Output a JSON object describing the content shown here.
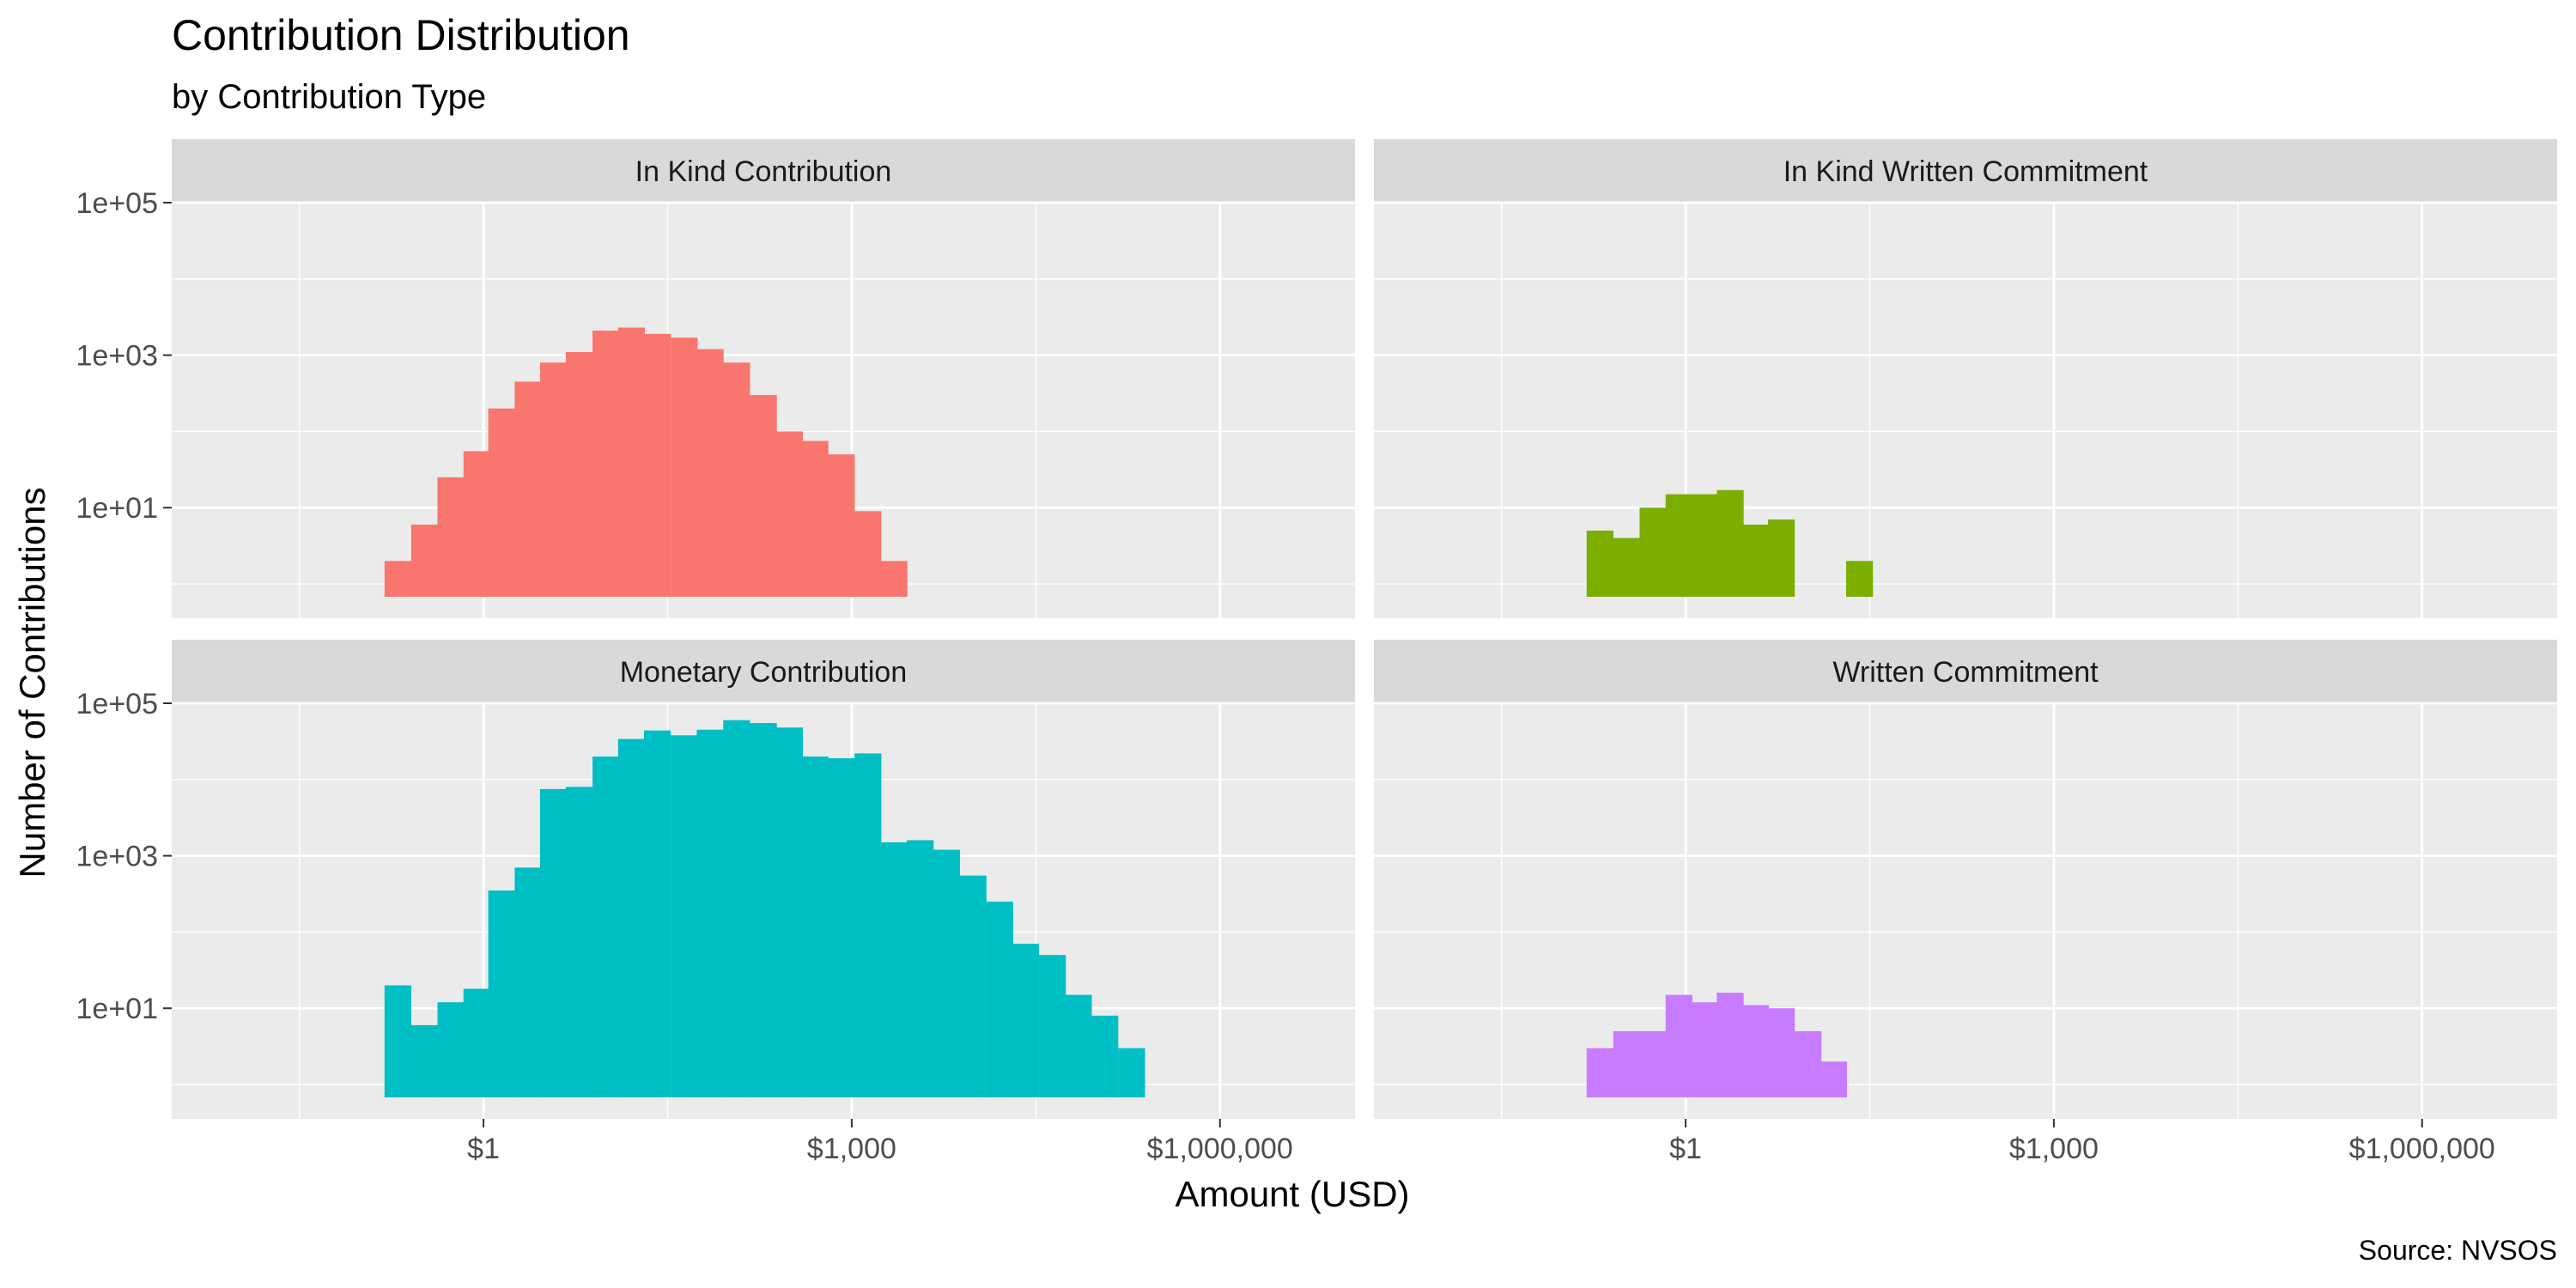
{
  "chart_data": {
    "type": "bar",
    "title": "Contribution Distribution",
    "subtitle": "by Contribution Type",
    "xlabel": "Amount (USD)",
    "ylabel": "Number of Contributions",
    "caption": "Source: NVSOS",
    "x_scale": "log10",
    "y_scale": "log10",
    "x_ticks": [
      {
        "value": 1,
        "label": "$1"
      },
      {
        "value": 1000,
        "label": "$1,000"
      },
      {
        "value": 1000000,
        "label": "$1,000,000"
      }
    ],
    "y_ticks": [
      {
        "value": 10,
        "label": "1e+01"
      },
      {
        "value": 1000,
        "label": "1e+03"
      },
      {
        "value": 100000,
        "label": "1e+05"
      }
    ],
    "bin_log10_width": 0.215,
    "grid": true,
    "legend": "none",
    "facets": [
      {
        "name": "In Kind Contribution",
        "color": "#F8766D",
        "bins": [
          {
            "x": 0.2,
            "count": 2
          },
          {
            "x": 0.33,
            "count": 6
          },
          {
            "x": 0.54,
            "count": 25
          },
          {
            "x": 0.88,
            "count": 55
          },
          {
            "x": 1.4,
            "count": 200
          },
          {
            "x": 2.3,
            "count": 450
          },
          {
            "x": 3.7,
            "count": 800
          },
          {
            "x": 6.0,
            "count": 1100
          },
          {
            "x": 9.9,
            "count": 2100
          },
          {
            "x": 16,
            "count": 2300
          },
          {
            "x": 26,
            "count": 1900
          },
          {
            "x": 43,
            "count": 1700
          },
          {
            "x": 70,
            "count": 1200
          },
          {
            "x": 115,
            "count": 800
          },
          {
            "x": 190,
            "count": 300
          },
          {
            "x": 310,
            "count": 100
          },
          {
            "x": 500,
            "count": 75
          },
          {
            "x": 820,
            "count": 50
          },
          {
            "x": 1350,
            "count": 9
          },
          {
            "x": 2200,
            "count": 2
          }
        ]
      },
      {
        "name": "In Kind Written Commitment",
        "color": "#7CAE00",
        "bins": [
          {
            "x": 0.2,
            "count": 5
          },
          {
            "x": 0.33,
            "count": 4
          },
          {
            "x": 0.54,
            "count": 10
          },
          {
            "x": 0.88,
            "count": 15
          },
          {
            "x": 1.4,
            "count": 15
          },
          {
            "x": 2.3,
            "count": 17
          },
          {
            "x": 3.7,
            "count": 6
          },
          {
            "x": 6.0,
            "count": 7
          },
          {
            "x": 26,
            "count": 2
          }
        ]
      },
      {
        "name": "Monetary Contribution",
        "color": "#00BFC4",
        "bins": [
          {
            "x": 0.2,
            "count": 20
          },
          {
            "x": 0.33,
            "count": 6
          },
          {
            "x": 0.54,
            "count": 12
          },
          {
            "x": 0.88,
            "count": 18
          },
          {
            "x": 1.4,
            "count": 350
          },
          {
            "x": 2.3,
            "count": 700
          },
          {
            "x": 3.7,
            "count": 7500
          },
          {
            "x": 6.0,
            "count": 8000
          },
          {
            "x": 9.9,
            "count": 20000
          },
          {
            "x": 16,
            "count": 34000
          },
          {
            "x": 26,
            "count": 44000
          },
          {
            "x": 43,
            "count": 38000
          },
          {
            "x": 70,
            "count": 45000
          },
          {
            "x": 115,
            "count": 60000
          },
          {
            "x": 190,
            "count": 55000
          },
          {
            "x": 310,
            "count": 48000
          },
          {
            "x": 500,
            "count": 20000
          },
          {
            "x": 820,
            "count": 19000
          },
          {
            "x": 1350,
            "count": 22000
          },
          {
            "x": 2200,
            "count": 1500
          },
          {
            "x": 3600,
            "count": 1600
          },
          {
            "x": 5900,
            "count": 1200
          },
          {
            "x": 9700,
            "count": 550
          },
          {
            "x": 16000,
            "count": 250
          },
          {
            "x": 26000,
            "count": 70
          },
          {
            "x": 43000,
            "count": 50
          },
          {
            "x": 70000,
            "count": 15
          },
          {
            "x": 115000,
            "count": 8
          },
          {
            "x": 190000,
            "count": 3
          }
        ]
      },
      {
        "name": "Written Commitment",
        "color": "#C77CFF",
        "bins": [
          {
            "x": 0.2,
            "count": 3
          },
          {
            "x": 0.33,
            "count": 5
          },
          {
            "x": 0.54,
            "count": 5
          },
          {
            "x": 0.88,
            "count": 15
          },
          {
            "x": 1.4,
            "count": 12
          },
          {
            "x": 2.3,
            "count": 16
          },
          {
            "x": 3.7,
            "count": 11
          },
          {
            "x": 6.0,
            "count": 10
          },
          {
            "x": 9.9,
            "count": 5
          },
          {
            "x": 16,
            "count": 2
          }
        ]
      }
    ]
  }
}
